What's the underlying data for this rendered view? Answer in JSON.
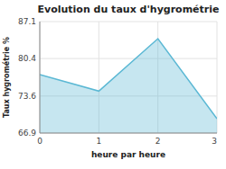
{
  "chart_data": {
    "type": "area",
    "title": "Evolution du taux d'hygrométrie",
    "xlabel": "heure par heure",
    "ylabel": "Taux hygrométrie %",
    "x": [
      0,
      1,
      2,
      3
    ],
    "values": [
      77.5,
      74.5,
      84.0,
      69.5
    ],
    "color": "#5bb8d4",
    "xlim": [
      0,
      3
    ],
    "ylim": [
      66.9,
      87.1
    ],
    "xticks": [
      0,
      1,
      2,
      3
    ],
    "yticks": [
      66.9,
      73.6,
      80.4,
      87.1
    ],
    "grid": true
  }
}
